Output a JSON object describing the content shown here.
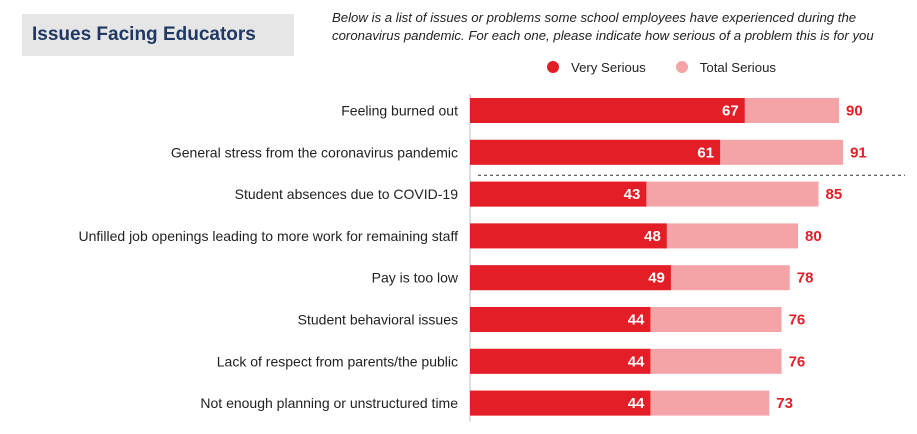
{
  "title": "Issues Facing Educators",
  "question": "Below is a list of issues or problems some school employees have experienced during the coronavirus pandemic. For each one, please indicate how serious of a problem this is for you",
  "colors": {
    "very_serious": "#e41e26",
    "total_serious": "#f4a3a6",
    "title_text": "#1f3864"
  },
  "chart_data": {
    "type": "bar",
    "orientation": "horizontal",
    "categories": [
      "Feeling burned out",
      "General stress from the coronavirus pandemic",
      "Student absences due to COVID-19",
      "Unfilled job openings leading to more work for remaining staff",
      "Pay is too low",
      "Student behavioral issues",
      "Lack of respect from parents/the public",
      "Not enough planning or unstructured time"
    ],
    "series": [
      {
        "name": "Very Serious",
        "values": [
          67,
          61,
          43,
          48,
          49,
          44,
          44,
          44
        ]
      },
      {
        "name": "Total Serious",
        "values": [
          90,
          91,
          85,
          80,
          78,
          76,
          76,
          73
        ]
      }
    ],
    "xlim": [
      0,
      100
    ],
    "legend_position": "top-right",
    "divider_after_index": 1
  }
}
